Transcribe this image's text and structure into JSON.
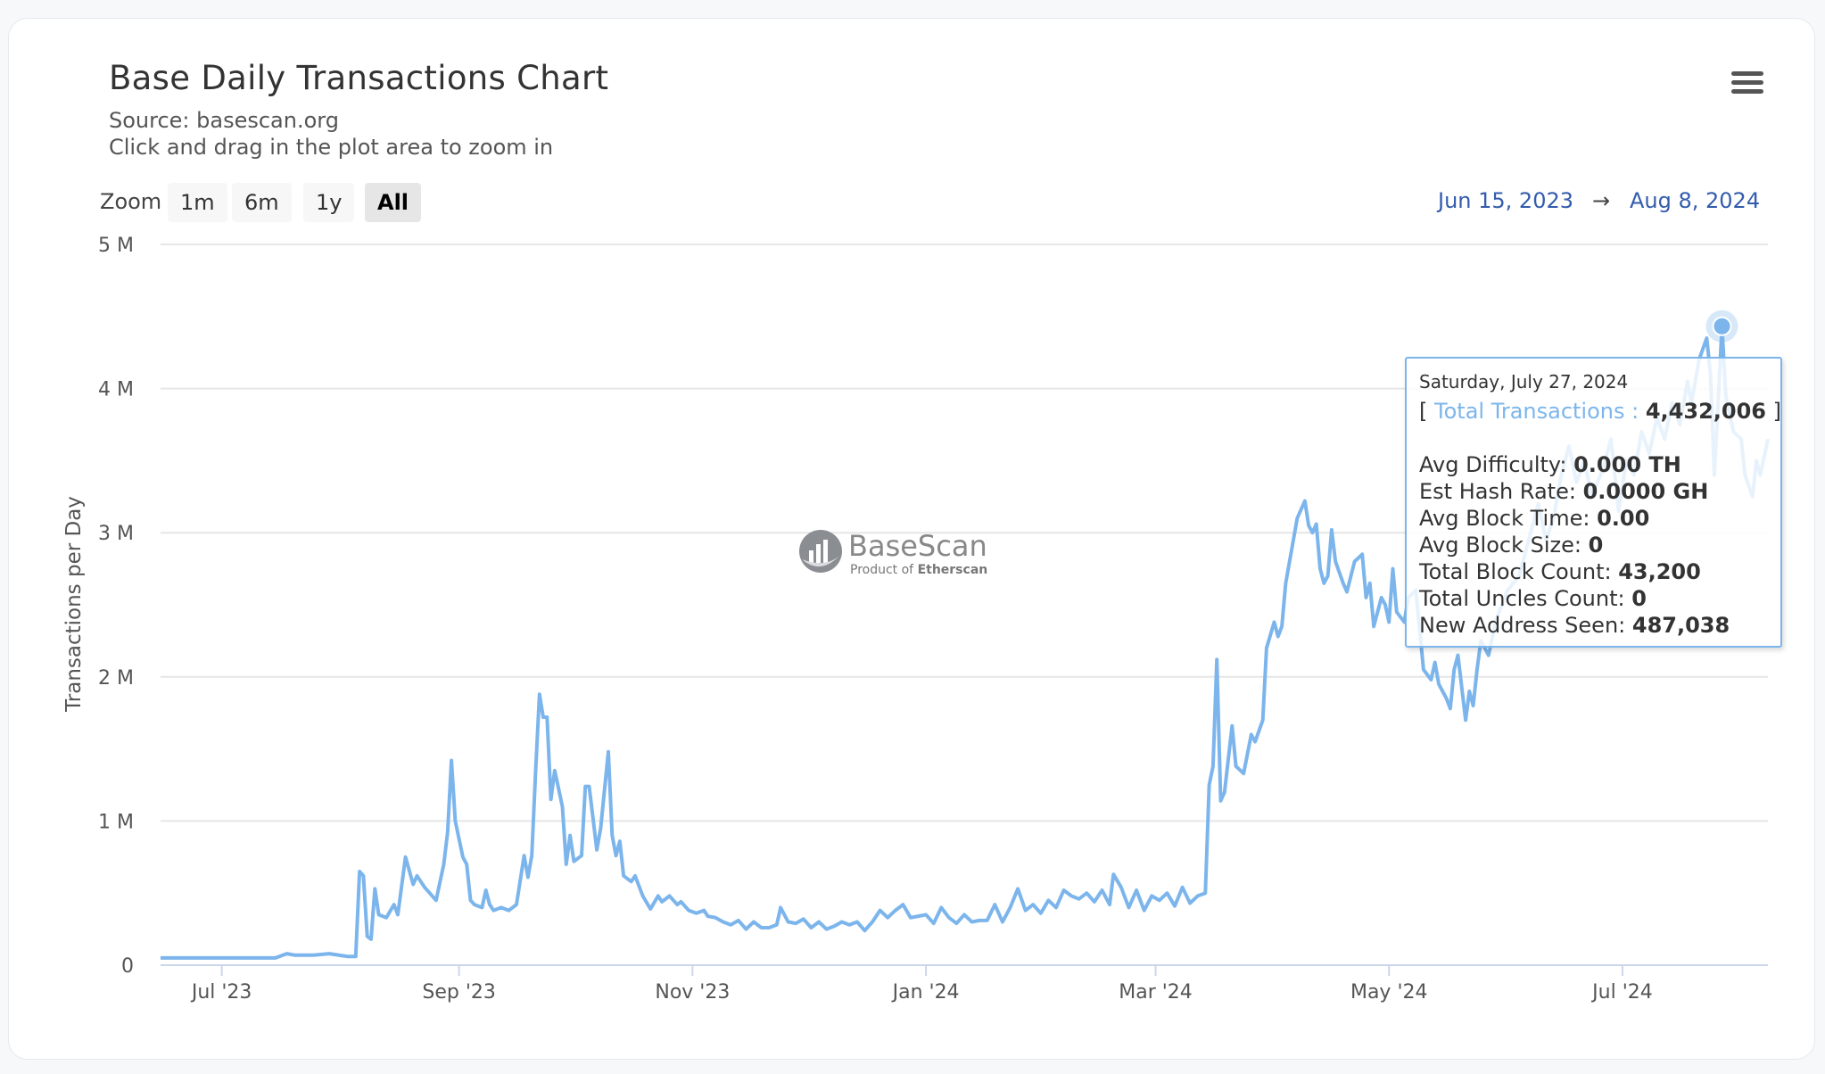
{
  "header": {
    "title": "Base Daily Transactions Chart",
    "source": "Source: basescan.org",
    "hint": "Click and drag in the plot area to zoom in"
  },
  "zoom": {
    "label": "Zoom",
    "buttons": [
      "1m",
      "6m",
      "1y",
      "All"
    ],
    "active": "All"
  },
  "range": {
    "from": "Jun 15, 2023",
    "arrow": "→",
    "to": "Aug 8, 2024"
  },
  "watermark": {
    "name": "BaseScan",
    "tagline_prefix": "Product of ",
    "tagline_brand": "Etherscan"
  },
  "tooltip": {
    "date": "Saturday, July 27, 2024",
    "open_bracket": "[",
    "series_label": "Total Transactions :",
    "series_value": "4,432,006",
    "close_bracket": "]",
    "rows": [
      {
        "label": "Avg Difficulty:",
        "value": "0.000 TH"
      },
      {
        "label": "Est Hash Rate:",
        "value": "0.0000 GH"
      },
      {
        "label": "Avg Block Time:",
        "value": "0.00"
      },
      {
        "label": "Avg Block Size:",
        "value": "0"
      },
      {
        "label": "Total Block Count:",
        "value": "43,200"
      },
      {
        "label": "Total Uncles Count:",
        "value": "0"
      },
      {
        "label": "New Address Seen:",
        "value": "487,038"
      }
    ]
  },
  "colors": {
    "line": "#7cb5ec",
    "grid": "#e6e6e6",
    "range_text": "#335cad"
  },
  "chart_data": {
    "type": "line",
    "ylabel": "Transactions per Day",
    "ylim": [
      0,
      5000000
    ],
    "y_ticks": [
      0,
      1000000,
      2000000,
      3000000,
      4000000,
      5000000
    ],
    "y_tick_labels": [
      "0",
      "1 M",
      "2 M",
      "3 M",
      "4 M",
      "5 M"
    ],
    "x_range": [
      "2023-06-15",
      "2024-08-08"
    ],
    "x_ticks": [
      "2023-07-01",
      "2023-09-01",
      "2023-11-01",
      "2024-01-01",
      "2024-03-01",
      "2024-05-01",
      "2024-07-01"
    ],
    "x_tick_labels": [
      "Jul '23",
      "Sep '23",
      "Nov '23",
      "Jan '24",
      "Mar '24",
      "May '24",
      "Jul '24"
    ],
    "grid": true,
    "highlight": {
      "date": "2024-07-27",
      "value": 4432006
    },
    "series": [
      {
        "points": [
          [
            "2023-06-15",
            50000
          ],
          [
            "2023-07-01",
            50000
          ],
          [
            "2023-07-10",
            50000
          ],
          [
            "2023-07-15",
            50000
          ],
          [
            "2023-07-18",
            80000
          ],
          [
            "2023-07-20",
            70000
          ],
          [
            "2023-07-25",
            70000
          ],
          [
            "2023-07-29",
            80000
          ],
          [
            "2023-08-03",
            60000
          ],
          [
            "2023-08-05",
            60000
          ],
          [
            "2023-08-06",
            650000
          ],
          [
            "2023-08-07",
            620000
          ],
          [
            "2023-08-08",
            200000
          ],
          [
            "2023-08-09",
            180000
          ],
          [
            "2023-08-10",
            530000
          ],
          [
            "2023-08-11",
            350000
          ],
          [
            "2023-08-13",
            330000
          ],
          [
            "2023-08-15",
            420000
          ],
          [
            "2023-08-16",
            350000
          ],
          [
            "2023-08-18",
            750000
          ],
          [
            "2023-08-20",
            560000
          ],
          [
            "2023-08-21",
            620000
          ],
          [
            "2023-08-23",
            540000
          ],
          [
            "2023-08-25",
            480000
          ],
          [
            "2023-08-26",
            450000
          ],
          [
            "2023-08-28",
            700000
          ],
          [
            "2023-08-29",
            920000
          ],
          [
            "2023-08-30",
            1420000
          ],
          [
            "2023-08-31",
            1000000
          ],
          [
            "2023-09-02",
            750000
          ],
          [
            "2023-09-03",
            700000
          ],
          [
            "2023-09-04",
            450000
          ],
          [
            "2023-09-05",
            420000
          ],
          [
            "2023-09-07",
            400000
          ],
          [
            "2023-09-08",
            520000
          ],
          [
            "2023-09-09",
            420000
          ],
          [
            "2023-09-10",
            380000
          ],
          [
            "2023-09-12",
            400000
          ],
          [
            "2023-09-14",
            380000
          ],
          [
            "2023-09-16",
            420000
          ],
          [
            "2023-09-18",
            760000
          ],
          [
            "2023-09-19",
            610000
          ],
          [
            "2023-09-20",
            760000
          ],
          [
            "2023-09-21",
            1350000
          ],
          [
            "2023-09-22",
            1880000
          ],
          [
            "2023-09-23",
            1720000
          ],
          [
            "2023-09-24",
            1720000
          ],
          [
            "2023-09-25",
            1150000
          ],
          [
            "2023-09-26",
            1350000
          ],
          [
            "2023-09-28",
            1100000
          ],
          [
            "2023-09-29",
            700000
          ],
          [
            "2023-09-30",
            900000
          ],
          [
            "2023-10-01",
            720000
          ],
          [
            "2023-10-03",
            760000
          ],
          [
            "2023-10-04",
            1240000
          ],
          [
            "2023-10-05",
            1240000
          ],
          [
            "2023-10-07",
            800000
          ],
          [
            "2023-10-08",
            950000
          ],
          [
            "2023-10-10",
            1480000
          ],
          [
            "2023-10-11",
            900000
          ],
          [
            "2023-10-12",
            760000
          ],
          [
            "2023-10-13",
            860000
          ],
          [
            "2023-10-14",
            620000
          ],
          [
            "2023-10-16",
            580000
          ],
          [
            "2023-10-17",
            620000
          ],
          [
            "2023-10-19",
            480000
          ],
          [
            "2023-10-21",
            390000
          ],
          [
            "2023-10-23",
            480000
          ],
          [
            "2023-10-24",
            440000
          ],
          [
            "2023-10-26",
            480000
          ],
          [
            "2023-10-28",
            420000
          ],
          [
            "2023-10-29",
            440000
          ],
          [
            "2023-10-31",
            380000
          ],
          [
            "2023-11-02",
            360000
          ],
          [
            "2023-11-04",
            380000
          ],
          [
            "2023-11-05",
            340000
          ],
          [
            "2023-11-07",
            330000
          ],
          [
            "2023-11-09",
            300000
          ],
          [
            "2023-11-11",
            280000
          ],
          [
            "2023-11-13",
            310000
          ],
          [
            "2023-11-15",
            250000
          ],
          [
            "2023-11-17",
            300000
          ],
          [
            "2023-11-19",
            260000
          ],
          [
            "2023-11-21",
            260000
          ],
          [
            "2023-11-23",
            280000
          ],
          [
            "2023-11-24",
            400000
          ],
          [
            "2023-11-26",
            300000
          ],
          [
            "2023-11-28",
            290000
          ],
          [
            "2023-11-30",
            320000
          ],
          [
            "2023-12-02",
            260000
          ],
          [
            "2023-12-04",
            300000
          ],
          [
            "2023-12-06",
            250000
          ],
          [
            "2023-12-08",
            270000
          ],
          [
            "2023-12-10",
            300000
          ],
          [
            "2023-12-12",
            280000
          ],
          [
            "2023-12-14",
            300000
          ],
          [
            "2023-12-16",
            240000
          ],
          [
            "2023-12-18",
            300000
          ],
          [
            "2023-12-20",
            380000
          ],
          [
            "2023-12-22",
            330000
          ],
          [
            "2023-12-24",
            380000
          ],
          [
            "2023-12-26",
            420000
          ],
          [
            "2023-12-28",
            330000
          ],
          [
            "2023-12-30",
            340000
          ],
          [
            "2024-01-01",
            350000
          ],
          [
            "2024-01-03",
            290000
          ],
          [
            "2024-01-05",
            400000
          ],
          [
            "2024-01-07",
            330000
          ],
          [
            "2024-01-09",
            290000
          ],
          [
            "2024-01-11",
            350000
          ],
          [
            "2024-01-13",
            300000
          ],
          [
            "2024-01-15",
            310000
          ],
          [
            "2024-01-17",
            310000
          ],
          [
            "2024-01-19",
            420000
          ],
          [
            "2024-01-21",
            300000
          ],
          [
            "2024-01-23",
            400000
          ],
          [
            "2024-01-25",
            530000
          ],
          [
            "2024-01-27",
            380000
          ],
          [
            "2024-01-29",
            420000
          ],
          [
            "2024-01-31",
            360000
          ],
          [
            "2024-02-02",
            450000
          ],
          [
            "2024-02-04",
            400000
          ],
          [
            "2024-02-06",
            520000
          ],
          [
            "2024-02-08",
            480000
          ],
          [
            "2024-02-10",
            460000
          ],
          [
            "2024-02-12",
            500000
          ],
          [
            "2024-02-14",
            440000
          ],
          [
            "2024-02-16",
            520000
          ],
          [
            "2024-02-18",
            420000
          ],
          [
            "2024-02-19",
            630000
          ],
          [
            "2024-02-21",
            540000
          ],
          [
            "2024-02-23",
            400000
          ],
          [
            "2024-02-25",
            520000
          ],
          [
            "2024-02-27",
            380000
          ],
          [
            "2024-02-29",
            480000
          ],
          [
            "2024-03-02",
            450000
          ],
          [
            "2024-03-04",
            500000
          ],
          [
            "2024-03-06",
            410000
          ],
          [
            "2024-03-08",
            540000
          ],
          [
            "2024-03-10",
            430000
          ],
          [
            "2024-03-12",
            480000
          ],
          [
            "2024-03-14",
            500000
          ],
          [
            "2024-03-15",
            1250000
          ],
          [
            "2024-03-16",
            1380000
          ],
          [
            "2024-03-17",
            2120000
          ],
          [
            "2024-03-18",
            1140000
          ],
          [
            "2024-03-19",
            1200000
          ],
          [
            "2024-03-21",
            1660000
          ],
          [
            "2024-03-22",
            1380000
          ],
          [
            "2024-03-24",
            1330000
          ],
          [
            "2024-03-26",
            1600000
          ],
          [
            "2024-03-27",
            1550000
          ],
          [
            "2024-03-29",
            1700000
          ],
          [
            "2024-03-30",
            2200000
          ],
          [
            "2024-04-01",
            2380000
          ],
          [
            "2024-04-02",
            2280000
          ],
          [
            "2024-04-03",
            2350000
          ],
          [
            "2024-04-04",
            2650000
          ],
          [
            "2024-04-06",
            2950000
          ],
          [
            "2024-04-07",
            3100000
          ],
          [
            "2024-04-09",
            3220000
          ],
          [
            "2024-04-10",
            3050000
          ],
          [
            "2024-04-11",
            3000000
          ],
          [
            "2024-04-12",
            3060000
          ],
          [
            "2024-04-13",
            2750000
          ],
          [
            "2024-04-14",
            2650000
          ],
          [
            "2024-04-15",
            2700000
          ],
          [
            "2024-04-16",
            3020000
          ],
          [
            "2024-04-17",
            2800000
          ],
          [
            "2024-04-19",
            2650000
          ],
          [
            "2024-04-20",
            2590000
          ],
          [
            "2024-04-22",
            2800000
          ],
          [
            "2024-04-24",
            2850000
          ],
          [
            "2024-04-25",
            2550000
          ],
          [
            "2024-04-26",
            2650000
          ],
          [
            "2024-04-27",
            2350000
          ],
          [
            "2024-04-29",
            2550000
          ],
          [
            "2024-04-30",
            2500000
          ],
          [
            "2024-05-01",
            2380000
          ],
          [
            "2024-05-02",
            2750000
          ],
          [
            "2024-05-03",
            2450000
          ],
          [
            "2024-05-05",
            2380000
          ],
          [
            "2024-05-06",
            2550000
          ],
          [
            "2024-05-08",
            2600000
          ],
          [
            "2024-05-10",
            2050000
          ],
          [
            "2024-05-12",
            1980000
          ],
          [
            "2024-05-13",
            2100000
          ],
          [
            "2024-05-14",
            1950000
          ],
          [
            "2024-05-16",
            1850000
          ],
          [
            "2024-05-17",
            1780000
          ],
          [
            "2024-05-18",
            2050000
          ],
          [
            "2024-05-19",
            2150000
          ],
          [
            "2024-05-21",
            1700000
          ],
          [
            "2024-05-22",
            1900000
          ],
          [
            "2024-05-23",
            1800000
          ],
          [
            "2024-05-24",
            2050000
          ],
          [
            "2024-05-25",
            2250000
          ],
          [
            "2024-05-27",
            2150000
          ],
          [
            "2024-05-29",
            2400000
          ],
          [
            "2024-06-01",
            2600000
          ],
          [
            "2024-06-04",
            2700000
          ],
          [
            "2024-06-06",
            2900000
          ],
          [
            "2024-06-09",
            3200000
          ],
          [
            "2024-06-11",
            2950000
          ],
          [
            "2024-06-13",
            3100000
          ],
          [
            "2024-06-15",
            3400000
          ],
          [
            "2024-06-17",
            3600000
          ],
          [
            "2024-06-19",
            3350000
          ],
          [
            "2024-06-21",
            3500000
          ],
          [
            "2024-06-23",
            3250000
          ],
          [
            "2024-06-26",
            3450000
          ],
          [
            "2024-06-28",
            3650000
          ],
          [
            "2024-06-30",
            3150000
          ],
          [
            "2024-07-02",
            3500000
          ],
          [
            "2024-07-04",
            3400000
          ],
          [
            "2024-07-06",
            3700000
          ],
          [
            "2024-07-08",
            3550000
          ],
          [
            "2024-07-10",
            3800000
          ],
          [
            "2024-07-12",
            3650000
          ],
          [
            "2024-07-14",
            3900000
          ],
          [
            "2024-07-16",
            3750000
          ],
          [
            "2024-07-18",
            4050000
          ],
          [
            "2024-07-19",
            3900000
          ],
          [
            "2024-07-21",
            4200000
          ],
          [
            "2024-07-23",
            4350000
          ],
          [
            "2024-07-24",
            4100000
          ],
          [
            "2024-07-25",
            3400000
          ],
          [
            "2024-07-26",
            3900000
          ],
          [
            "2024-07-27",
            4432006
          ],
          [
            "2024-07-28",
            3950000
          ],
          [
            "2024-07-30",
            3700000
          ],
          [
            "2024-08-01",
            3650000
          ],
          [
            "2024-08-02",
            3400000
          ],
          [
            "2024-08-04",
            3250000
          ],
          [
            "2024-08-05",
            3500000
          ],
          [
            "2024-08-06",
            3400000
          ],
          [
            "2024-08-08",
            3650000
          ]
        ]
      }
    ]
  }
}
